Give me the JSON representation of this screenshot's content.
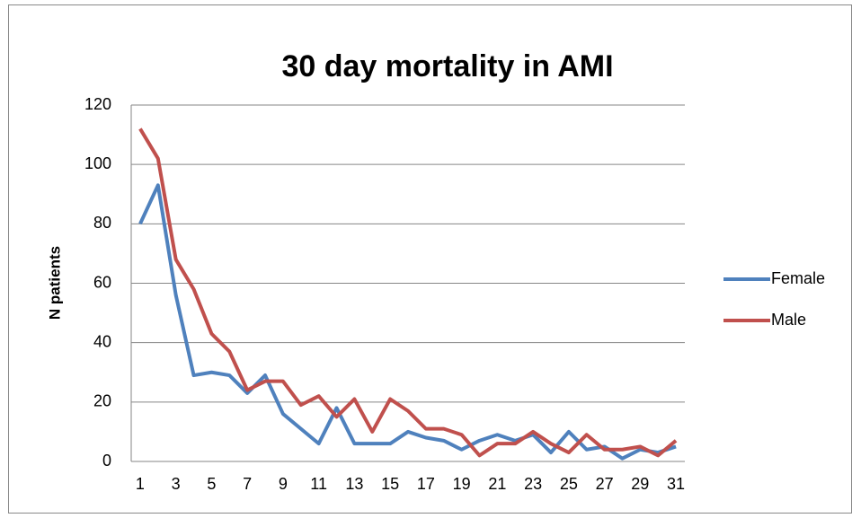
{
  "chart_data": {
    "type": "line",
    "title": "30 day mortality in AMI",
    "y_label": "N patients",
    "categories": [
      1,
      null,
      3,
      null,
      5,
      null,
      7,
      null,
      9,
      null,
      11,
      null,
      13,
      null,
      15,
      null,
      17,
      null,
      19,
      null,
      21,
      null,
      23,
      null,
      25,
      null,
      27,
      null,
      29,
      null,
      31
    ],
    "series": [
      {
        "name": "Female",
        "color": "#4f81bd",
        "values": [
          80,
          93,
          56,
          29,
          30,
          29,
          23,
          29,
          16,
          11,
          6,
          18,
          6,
          6,
          6,
          10,
          8,
          7,
          4,
          7,
          9,
          7,
          9,
          3,
          10,
          4,
          5,
          1,
          4,
          3,
          5
        ]
      },
      {
        "name": "Male",
        "color": "#c0504d",
        "values": [
          112,
          102,
          68,
          58,
          43,
          37,
          24,
          27,
          27,
          19,
          22,
          15,
          21,
          10,
          21,
          17,
          11,
          11,
          9,
          2,
          6,
          6,
          10,
          6,
          3,
          9,
          4,
          4,
          5,
          2,
          7
        ]
      }
    ],
    "ylim": [
      0,
      120
    ],
    "yticks": [
      0,
      20,
      40,
      60,
      80,
      100,
      120
    ],
    "grid": true,
    "legend": "right"
  }
}
